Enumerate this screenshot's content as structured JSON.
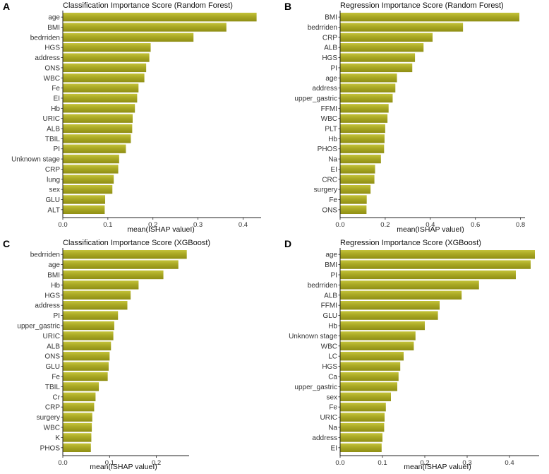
{
  "colors": {
    "bar": "#a3a21c",
    "bar_highlight": "#c4c33a",
    "axis": "#222222"
  },
  "chart_data": [
    {
      "panel": "A",
      "type": "bar",
      "orientation": "horizontal",
      "title": "Classification Importance Score (Random Forest)",
      "xlabel": "mean(ISHAP valueI)",
      "xlim": [
        0,
        0.44
      ],
      "xticks": [
        0.0,
        0.1,
        0.2,
        0.3,
        0.4
      ],
      "xtick_labels": [
        "0.0",
        "0.1",
        "0.2",
        "0.3",
        "0.4"
      ],
      "categories": [
        "age",
        "BMI",
        "bedrriden",
        "HGS",
        "address",
        "ONS",
        "WBC",
        "Fe",
        "EI",
        "Hb",
        "URIC",
        "ALB",
        "TBIL",
        "PI",
        "Unknown stage",
        "CRP",
        "lung",
        "sex",
        "GLU",
        "ALT"
      ],
      "values": [
        0.43,
        0.363,
        0.29,
        0.195,
        0.192,
        0.185,
        0.181,
        0.168,
        0.165,
        0.16,
        0.155,
        0.154,
        0.151,
        0.14,
        0.125,
        0.123,
        0.113,
        0.11,
        0.094,
        0.093
      ]
    },
    {
      "panel": "B",
      "type": "bar",
      "orientation": "horizontal",
      "title": "Regression Importance Score (Random Forest)",
      "xlabel": "mean(ISHAP valueI)",
      "xlim": [
        0,
        0.82
      ],
      "xticks": [
        0.0,
        0.2,
        0.4,
        0.6,
        0.8
      ],
      "xtick_labels": [
        "0.0",
        "0.2",
        "0.4",
        "0.6",
        "0.8"
      ],
      "categories": [
        "BMI",
        "bedrriden",
        "CRP",
        "ALB",
        "HGS",
        "PI",
        "age",
        "address",
        "upper_gastric",
        "FFMI",
        "WBC",
        "PLT",
        "Hb",
        "PHOS",
        "Na",
        "EI",
        "CRC",
        "surgery",
        "Fe",
        "ONS"
      ],
      "values": [
        0.795,
        0.545,
        0.41,
        0.37,
        0.332,
        0.32,
        0.252,
        0.245,
        0.233,
        0.215,
        0.21,
        0.2,
        0.197,
        0.195,
        0.181,
        0.155,
        0.152,
        0.135,
        0.118,
        0.117
      ]
    },
    {
      "panel": "C",
      "type": "bar",
      "orientation": "horizontal",
      "title": "Classification Importance Score (XGBoost)",
      "xlabel": "mean(ISHAP valueI)",
      "xlim": [
        0,
        0.27
      ],
      "xticks": [
        0.0,
        0.1,
        0.2
      ],
      "xtick_labels": [
        "0.0",
        "0.1",
        "0.2"
      ],
      "categories": [
        "bedrriden",
        "age",
        "BMI",
        "Hb",
        "HGS",
        "address",
        "PI",
        "upper_gastric",
        "URIC",
        "ALB",
        "ONS",
        "GLU",
        "Fe",
        "TBIL",
        "Cr",
        "CRP",
        "surgery",
        "WBC",
        "K",
        "PHOS"
      ],
      "values": [
        0.265,
        0.247,
        0.215,
        0.162,
        0.145,
        0.138,
        0.118,
        0.11,
        0.108,
        0.103,
        0.1,
        0.098,
        0.096,
        0.077,
        0.07,
        0.067,
        0.063,
        0.062,
        0.061,
        0.06
      ]
    },
    {
      "panel": "D",
      "type": "bar",
      "orientation": "horizontal",
      "title": "Regression Importance Score (XGBoost)",
      "xlabel": "mean(ISHAP valueI)",
      "xlim": [
        0,
        0.47
      ],
      "xticks": [
        0.0,
        0.1,
        0.2,
        0.3,
        0.4
      ],
      "xtick_labels": [
        "0.0",
        "0.1",
        "0.2",
        "0.3",
        "0.4"
      ],
      "categories": [
        "age",
        "BMI",
        "PI",
        "bedrriden",
        "ALB",
        "FFMI",
        "GLU",
        "Hb",
        "Unknown stage",
        "WBC",
        "LC",
        "HGS",
        "Ca",
        "upper_gastric",
        "sex",
        "Fe",
        "URIC",
        "Na",
        "address",
        "EI"
      ],
      "values": [
        0.46,
        0.45,
        0.415,
        0.328,
        0.287,
        0.235,
        0.231,
        0.2,
        0.178,
        0.174,
        0.15,
        0.142,
        0.138,
        0.135,
        0.12,
        0.108,
        0.105,
        0.104,
        0.1,
        0.098
      ]
    }
  ]
}
